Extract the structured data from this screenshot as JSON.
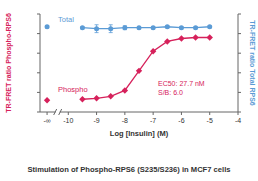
{
  "chart_data": {
    "type": "line",
    "title": "Stimulation of Phospho-RPS6 (S235/S236) in MCF7 cells",
    "x_label": "Log [Insulin] (M)",
    "y_label": "TR-FRET ratio Phospho-RPS6",
    "y2_label": "TR-FRET ratio Total RPS6",
    "x": [
      -10.75,
      -9.5,
      -9,
      -8.5,
      -8,
      -7.5,
      -7,
      -6.5,
      -6,
      -5.5,
      -5
    ],
    "xlim": [
      -11,
      -4
    ],
    "xticks": [
      {
        "value": -10.75,
        "label": "-∞"
      },
      -10,
      -9,
      -8,
      -7,
      -6,
      -5,
      -4
    ],
    "ylim": [
      0,
      100
    ],
    "yticks": [
      0,
      20,
      40,
      60,
      80,
      100
    ],
    "y2lim": [
      0,
      100
    ],
    "y2ticks": [
      0,
      20,
      40,
      60,
      80,
      100
    ],
    "tick_labels": "x",
    "series": [
      {
        "name": "Total",
        "color": "#5b9bd5",
        "marker": "circle",
        "axis": "y2",
        "values": [
          87,
          86,
          85,
          85,
          86,
          86,
          86,
          87,
          86,
          86,
          87
        ],
        "errors": [
          1,
          1,
          4,
          4,
          2,
          1,
          1,
          1,
          1,
          1,
          1
        ]
      },
      {
        "name": "Phospho",
        "color": "#d6215b",
        "marker": "diamond",
        "axis": "y",
        "values": [
          12,
          13,
          14,
          16,
          22,
          42,
          62,
          72,
          75,
          76,
          76
        ]
      }
    ],
    "annotations": [
      {
        "text": "EC50: 27.7 nM"
      },
      {
        "text": "S/B: 6.0"
      }
    ]
  }
}
